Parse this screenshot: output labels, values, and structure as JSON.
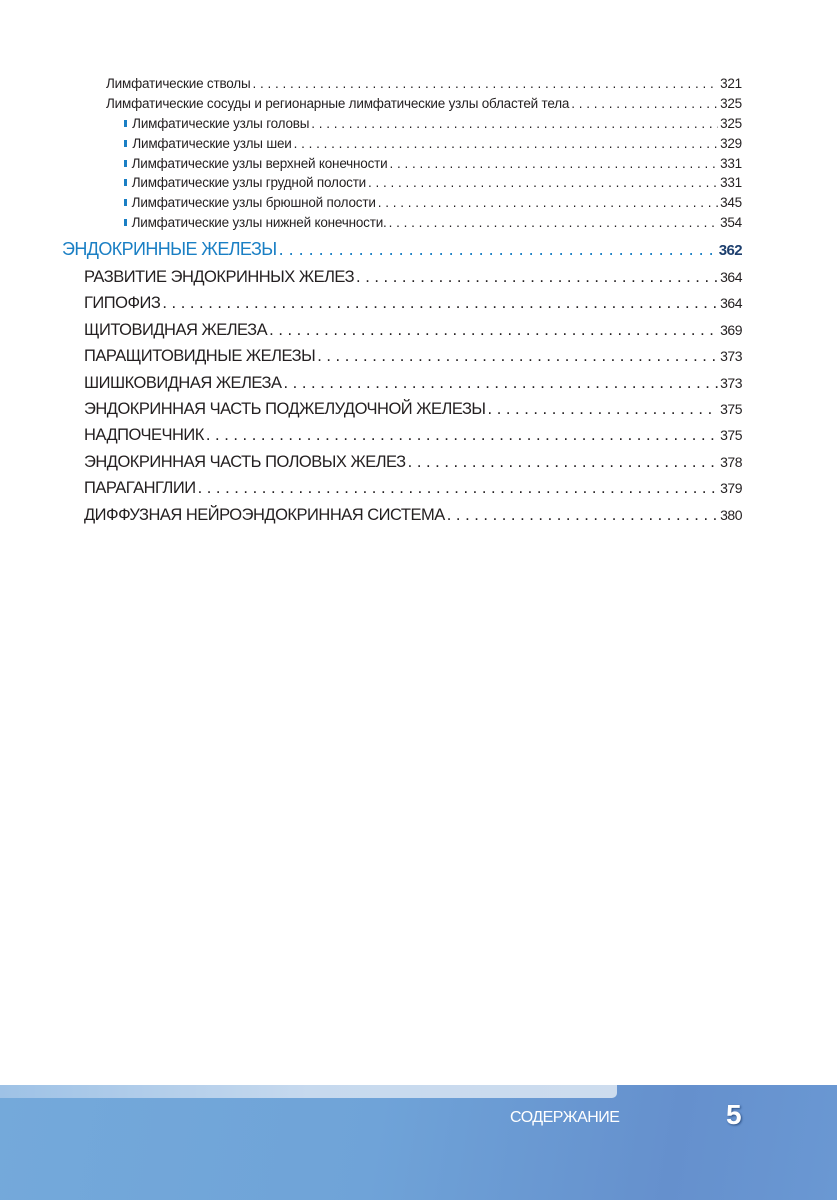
{
  "toc": {
    "sub_items": [
      {
        "label": "Лимфатические стволы",
        "page": "321"
      },
      {
        "label": "Лимфатические сосуды и регионарные лимфатические узлы областей тела",
        "page": "325"
      }
    ],
    "bullet_items": [
      {
        "label": "Лимфатические узлы головы",
        "page": "325"
      },
      {
        "label": "Лимфатические узлы шеи",
        "page": "329"
      },
      {
        "label": "Лимфатические узлы верхней конечности",
        "page": "331"
      },
      {
        "label": "Лимфатические узлы грудной полости",
        "page": "331"
      },
      {
        "label": "Лимфатические узлы брюшной полости",
        "page": "345"
      },
      {
        "label": "Лимфатические узлы нижней конечности.",
        "page": "354"
      }
    ],
    "chapter": {
      "label": "ЭНДОКРИННЫЕ ЖЕЛЕЗЫ",
      "page": "362"
    },
    "sections": [
      {
        "label": "РАЗВИТИЕ ЭНДОКРИННЫХ ЖЕЛЕЗ",
        "page": "364"
      },
      {
        "label": "ГИПОФИЗ",
        "page": "364"
      },
      {
        "label": "ЩИТОВИДНАЯ ЖЕЛЕЗА",
        "page": "369"
      },
      {
        "label": "ПАРАЩИТОВИДНЫЕ ЖЕЛЕЗЫ",
        "page": "373"
      },
      {
        "label": "ШИШКОВИДНАЯ ЖЕЛЕЗА",
        "page": "373"
      },
      {
        "label": "ЭНДОКРИННАЯ ЧАСТЬ ПОДЖЕЛУДОЧНОЙ ЖЕЛЕЗЫ",
        "page": "375"
      },
      {
        "label": "НАДПОЧЕЧНИК",
        "page": "375"
      },
      {
        "label": "ЭНДОКРИННАЯ ЧАСТЬ ПОЛОВЫХ ЖЕЛЕЗ",
        "page": "378"
      },
      {
        "label": "ПАРАГАНГЛИИ",
        "page": "379"
      },
      {
        "label": "ДИФФУЗНАЯ НЕЙРОЭНДОКРИННАЯ СИСТЕМА",
        "page": "380"
      }
    ]
  },
  "footer": {
    "section_title": "СОДЕРЖАНИЕ",
    "page_number": "5"
  },
  "colors": {
    "accent": "#1a7fc4",
    "footer_band": "#6fa3d8"
  }
}
